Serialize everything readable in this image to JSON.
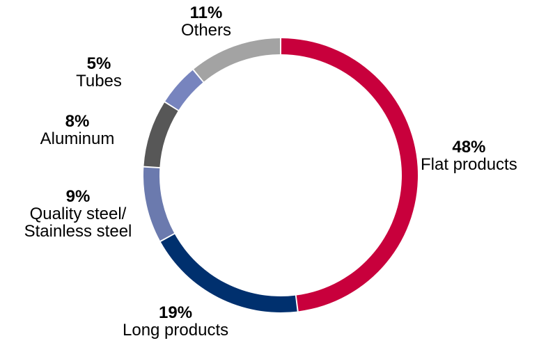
{
  "chart_data": {
    "type": "pie",
    "style": "donut",
    "title": "",
    "series": [
      {
        "name": "Flat products",
        "value_label": "48%",
        "value": 48,
        "color": "#C8003C"
      },
      {
        "name": "Long products",
        "value_label": "19%",
        "value": 19,
        "color": "#00306E"
      },
      {
        "name": "Quality steel/ Stainless steel",
        "value_label": "9%",
        "value": 9,
        "color": "#6B7AAE"
      },
      {
        "name": "Aluminum",
        "value_label": "8%",
        "value": 8,
        "color": "#575757"
      },
      {
        "name": "Tubes",
        "value_label": "5%",
        "value": 5,
        "color": "#7784BE"
      },
      {
        "name": "Others",
        "value_label": "11%",
        "value": 11,
        "color": "#A3A3A3"
      }
    ],
    "start_angle_deg": 0,
    "direction": "clockwise",
    "legend": "none"
  }
}
